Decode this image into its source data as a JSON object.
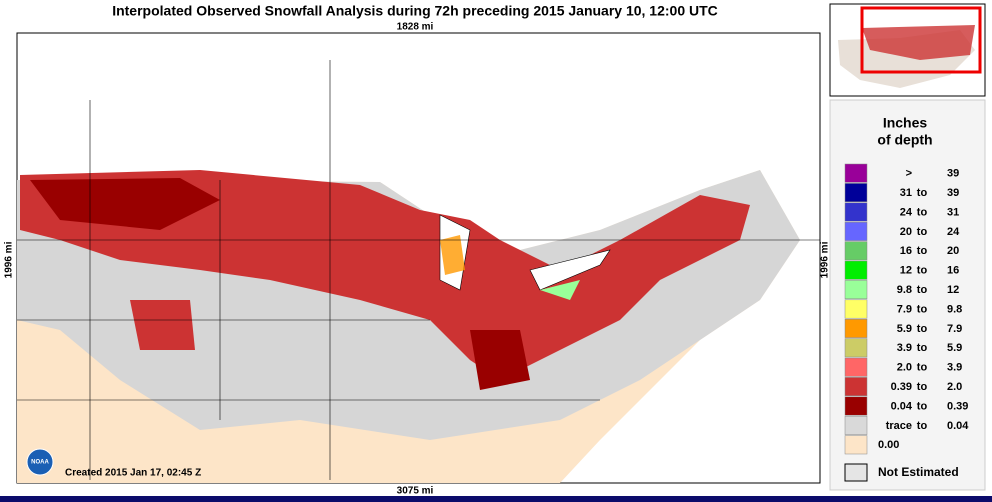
{
  "header": {
    "title": "Interpolated Observed Snowfall Analysis during 72h preceding 2015 January 10, 12:00 UTC"
  },
  "map": {
    "distance_top": "1828 mi",
    "distance_bottom": "3075 mi",
    "distance_left": "1996 mi",
    "distance_right": "1996 mi",
    "created": "Created 2015 Jan 17, 02:45 Z",
    "logo": "NOAA"
  },
  "legend": {
    "title_lines": [
      "Inches",
      "of depth"
    ],
    "rows": [
      {
        "parts": [
          ">",
          "39"
        ],
        "color": "#990099"
      },
      {
        "parts": [
          "31",
          "to",
          "39"
        ],
        "color": "#000099"
      },
      {
        "parts": [
          "24",
          "to",
          "31"
        ],
        "color": "#3333cc"
      },
      {
        "parts": [
          "20",
          "to",
          "24"
        ],
        "color": "#6666ff"
      },
      {
        "parts": [
          "16",
          "to",
          "20"
        ],
        "color": "#66cc66"
      },
      {
        "parts": [
          "12",
          "to",
          "16"
        ],
        "color": "#00ee00"
      },
      {
        "parts": [
          "9.8",
          "to",
          "12"
        ],
        "color": "#99ff99"
      },
      {
        "parts": [
          "7.9",
          "to",
          "9.8"
        ],
        "color": "#ffff66"
      },
      {
        "parts": [
          "5.9",
          "to",
          "7.9"
        ],
        "color": "#ff9900"
      },
      {
        "parts": [
          "3.9",
          "to",
          "5.9"
        ],
        "color": "#cccc66"
      },
      {
        "parts": [
          "2.0",
          "to",
          "3.9"
        ],
        "color": "#ff6666"
      },
      {
        "parts": [
          "0.39",
          "to",
          "2.0"
        ],
        "color": "#cc3333"
      },
      {
        "parts": [
          "0.04",
          "to",
          "0.39"
        ],
        "color": "#990000"
      },
      {
        "parts": [
          "trace",
          "to",
          "0.04"
        ],
        "color": "#d9d9d9"
      },
      {
        "parts": [
          "0.00"
        ],
        "color": "#fde5c8"
      }
    ],
    "not_estimated": "Not Estimated"
  }
}
